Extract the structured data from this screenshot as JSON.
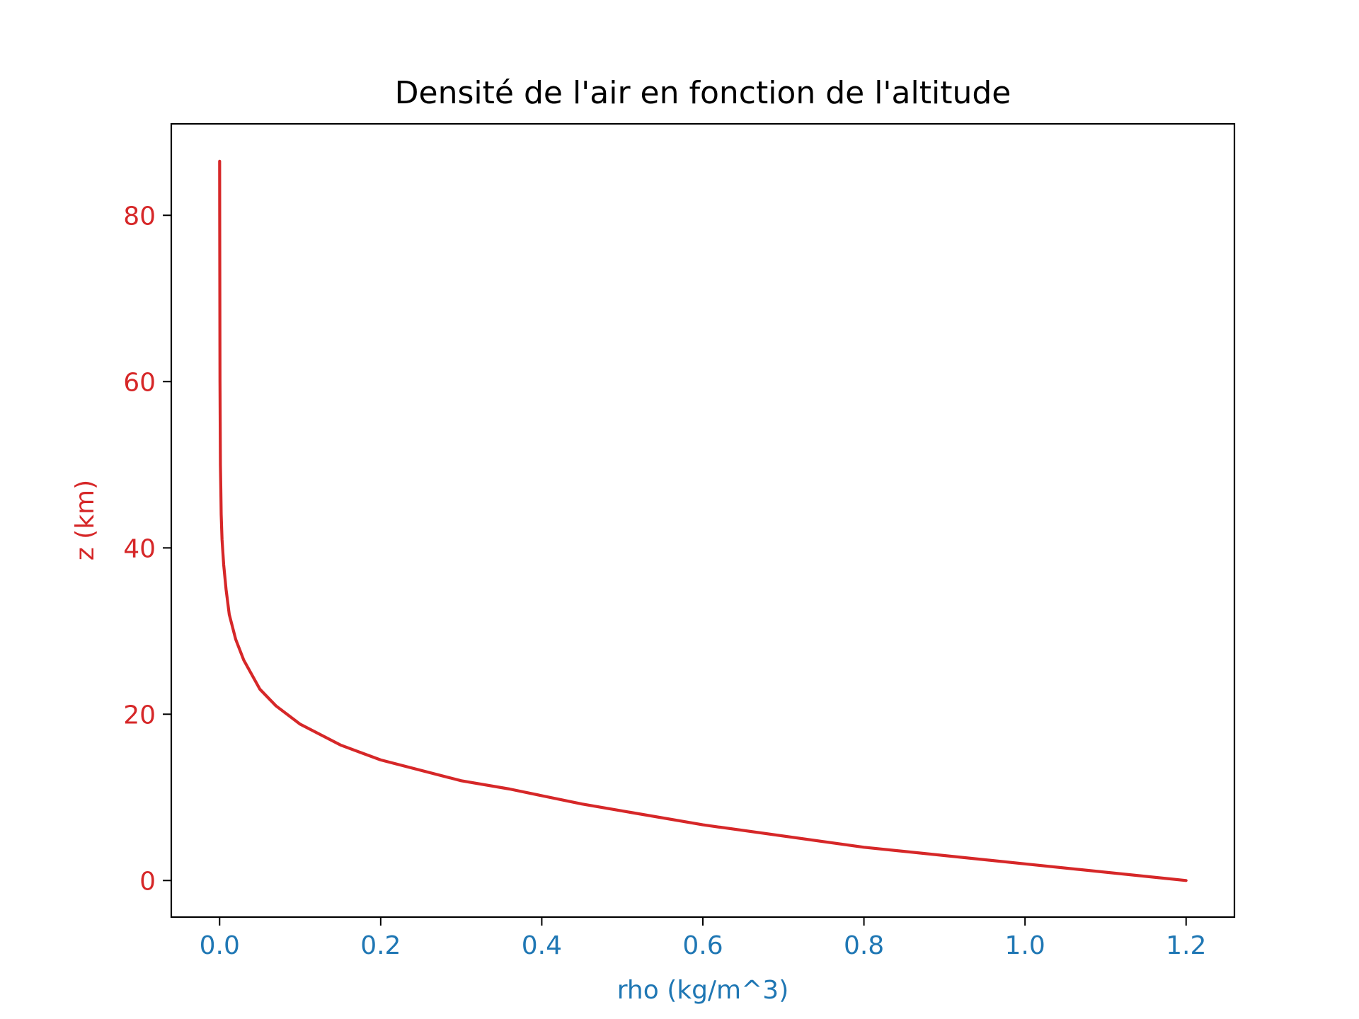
{
  "chart_data": {
    "type": "line",
    "title": "Densité de l'air en fonction de l'altitude",
    "xlabel": "rho (kg/m^3)",
    "ylabel": "z (km)",
    "xlim": [
      -0.06,
      1.26
    ],
    "ylim": [
      -4.4,
      91
    ],
    "xticks": [
      {
        "value": 0.0,
        "label": "0.0"
      },
      {
        "value": 0.2,
        "label": "0.2"
      },
      {
        "value": 0.4,
        "label": "0.4"
      },
      {
        "value": 0.6,
        "label": "0.6"
      },
      {
        "value": 0.8,
        "label": "0.8"
      },
      {
        "value": 1.0,
        "label": "1.0"
      },
      {
        "value": 1.2,
        "label": "1.2"
      }
    ],
    "yticks": [
      {
        "value": 0,
        "label": "0"
      },
      {
        "value": 20,
        "label": "20"
      },
      {
        "value": 40,
        "label": "40"
      },
      {
        "value": 60,
        "label": "60"
      },
      {
        "value": 80,
        "label": "80"
      }
    ],
    "grid": false,
    "colors": {
      "line": "#d62728",
      "ylabel": "#d62728",
      "yticks": "#d62728",
      "xlabel": "#1f77b4",
      "xticks": "#1f77b4"
    },
    "series": [
      {
        "x": [
          1.2,
          1.0,
          0.8,
          0.6,
          0.45,
          0.36,
          0.3,
          0.2,
          0.15,
          0.1,
          0.07,
          0.05,
          0.03,
          0.02,
          0.012,
          0.008,
          0.005,
          0.003,
          0.002,
          0.0015,
          0.001,
          0.0007,
          0.0005,
          0.0003,
          0.0001,
          0.0
        ],
        "y": [
          0,
          2,
          4,
          6.7,
          9.2,
          11,
          12,
          14.5,
          16.3,
          18.8,
          21,
          23,
          26.5,
          29,
          32,
          35,
          38,
          41,
          44,
          47,
          50,
          55,
          60,
          70,
          80,
          86.5
        ]
      }
    ]
  }
}
